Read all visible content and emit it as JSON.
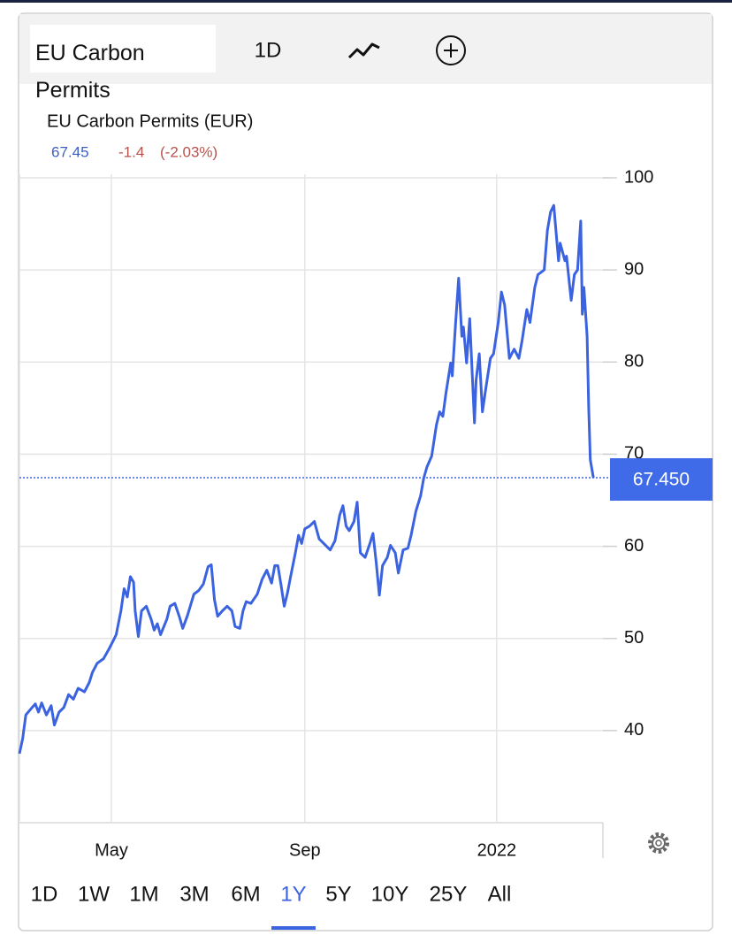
{
  "header": {
    "interval": "1D"
  },
  "range_buttons": [
    "1D",
    "1W",
    "1M",
    "3M",
    "6M",
    "1Y",
    "5Y",
    "10Y",
    "25Y",
    "All"
  ],
  "selected_range_index": 5,
  "chart_data": {
    "type": "line",
    "title": "EU Carbon Permits",
    "last": 67.45,
    "change": -1.4,
    "change_pct": {
      "value": -2.03,
      "label": "(-2.03%)"
    },
    "current_price": {
      "value": 67.45,
      "label": "67.450"
    },
    "x": [
      0,
      2,
      4,
      8,
      10,
      12,
      14,
      17,
      20,
      22,
      25,
      28,
      31,
      34,
      37,
      41,
      44,
      46,
      49,
      53,
      56,
      59,
      61,
      64,
      66,
      68,
      70,
      72,
      73,
      75,
      77,
      80,
      83,
      85,
      87,
      89,
      93,
      95,
      98,
      101,
      103,
      106,
      110,
      113,
      116,
      119,
      121,
      123,
      125,
      128,
      131,
      134,
      136,
      139,
      141,
      143,
      146,
      150,
      153,
      156,
      159,
      161,
      163,
      165,
      167,
      169,
      171,
      174,
      176,
      178,
      180,
      183,
      186,
      189,
      192,
      196,
      199,
      202,
      204,
      206,
      208,
      211,
      213,
      215,
      218,
      221,
      223,
      225,
      227,
      229,
      232,
      234,
      237,
      239,
      242,
      245,
      247,
      250,
      253,
      255,
      257,
      260,
      263,
      265,
      267,
      269,
      272,
      273,
      275,
      277,
      279,
      280,
      282,
      284,
      287,
      288,
      290,
      292,
      294,
      297,
      299,
      302,
      304,
      306,
      309,
      312,
      315,
      317,
      320,
      322,
      325,
      327,
      331,
      333,
      335,
      337,
      340,
      341,
      344,
      345,
      348,
      350,
      352,
      354,
      355,
      356,
      358,
      359,
      360,
      362
    ],
    "series": [
      {
        "name": "EU Carbon Permits (EUR)",
        "color": "#3b63e0",
        "values": [
          37.5,
          39.1,
          41.7,
          42.5,
          42.9,
          42.0,
          43.0,
          41.7,
          42.7,
          40.6,
          42.0,
          42.5,
          43.9,
          43.4,
          44.6,
          44.2,
          45.2,
          46.3,
          47.3,
          47.8,
          48.7,
          49.7,
          50.4,
          53.0,
          55.4,
          54.5,
          56.7,
          56.1,
          53.0,
          50.2,
          53.0,
          53.5,
          52.1,
          50.9,
          51.6,
          50.4,
          52.1,
          53.5,
          53.8,
          52.3,
          51.1,
          52.5,
          54.8,
          55.2,
          55.9,
          57.8,
          58.0,
          54.2,
          52.4,
          53.0,
          53.5,
          53.0,
          51.3,
          51.1,
          53.0,
          54.0,
          53.8,
          54.8,
          56.4,
          57.4,
          56.0,
          57.9,
          57.9,
          55.8,
          53.5,
          54.9,
          56.7,
          59.3,
          61.2,
          60.3,
          61.9,
          62.2,
          62.7,
          60.8,
          60.3,
          59.6,
          60.6,
          63.4,
          64.4,
          62.2,
          61.7,
          62.7,
          64.8,
          59.3,
          58.8,
          60.3,
          61.4,
          58.3,
          54.7,
          57.9,
          58.8,
          60.1,
          59.3,
          57.1,
          59.6,
          59.8,
          61.2,
          63.8,
          65.5,
          67.4,
          68.6,
          69.8,
          73.2,
          74.6,
          74.1,
          76.6,
          79.9,
          78.5,
          84.0,
          89.1,
          82.8,
          83.8,
          79.9,
          84.7,
          73.4,
          78.0,
          80.9,
          74.6,
          77.0,
          80.4,
          80.9,
          84.3,
          87.6,
          86.2,
          80.4,
          81.4,
          80.4,
          82.3,
          85.7,
          84.3,
          88.1,
          89.5,
          90.0,
          94.3,
          96.3,
          97.0,
          91.0,
          92.9,
          91.0,
          91.5,
          86.7,
          89.5,
          90.0,
          95.3,
          85.2,
          88.1,
          82.8,
          75.1,
          69.4,
          67.45
        ]
      }
    ],
    "xlim": [
      0,
      368
    ],
    "xticks": [
      {
        "value": 58,
        "label": "May"
      },
      {
        "value": 180,
        "label": "Sep"
      },
      {
        "value": 301,
        "label": "2022"
      }
    ],
    "ylim": [
      30,
      100
    ],
    "yticks": [
      40,
      50,
      60,
      70,
      80,
      90,
      100
    ],
    "grid": true
  }
}
